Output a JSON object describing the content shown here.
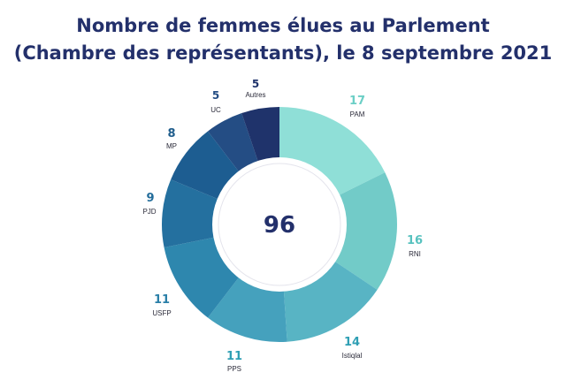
{
  "chart_data": {
    "type": "donut",
    "title_line1": "Nombre de femmes élues au Parlement",
    "title_line2": "(Chambre des représentants), le 8 septembre 2021",
    "total_label": "96",
    "categories": [
      "PAM",
      "RNI",
      "Istiqlal",
      "PPS",
      "USFP",
      "PJD",
      "MP",
      "UC",
      "Autres"
    ],
    "values": [
      17,
      16,
      14,
      11,
      11,
      9,
      8,
      5,
      5
    ],
    "colors": [
      "#8fdfd7",
      "#72cbc8",
      "#58b4c4",
      "#45a1bd",
      "#2e87ae",
      "#24709f",
      "#1d5d91",
      "#244d84",
      "#1f336b"
    ],
    "value_label_colors": [
      "#6ccfc6",
      "#58c2bf",
      "#2f9fb4",
      "#2f9fb4",
      "#2a7fa8",
      "#226c9a",
      "#1f5d8c",
      "#244d84",
      "#1f336b"
    ]
  }
}
